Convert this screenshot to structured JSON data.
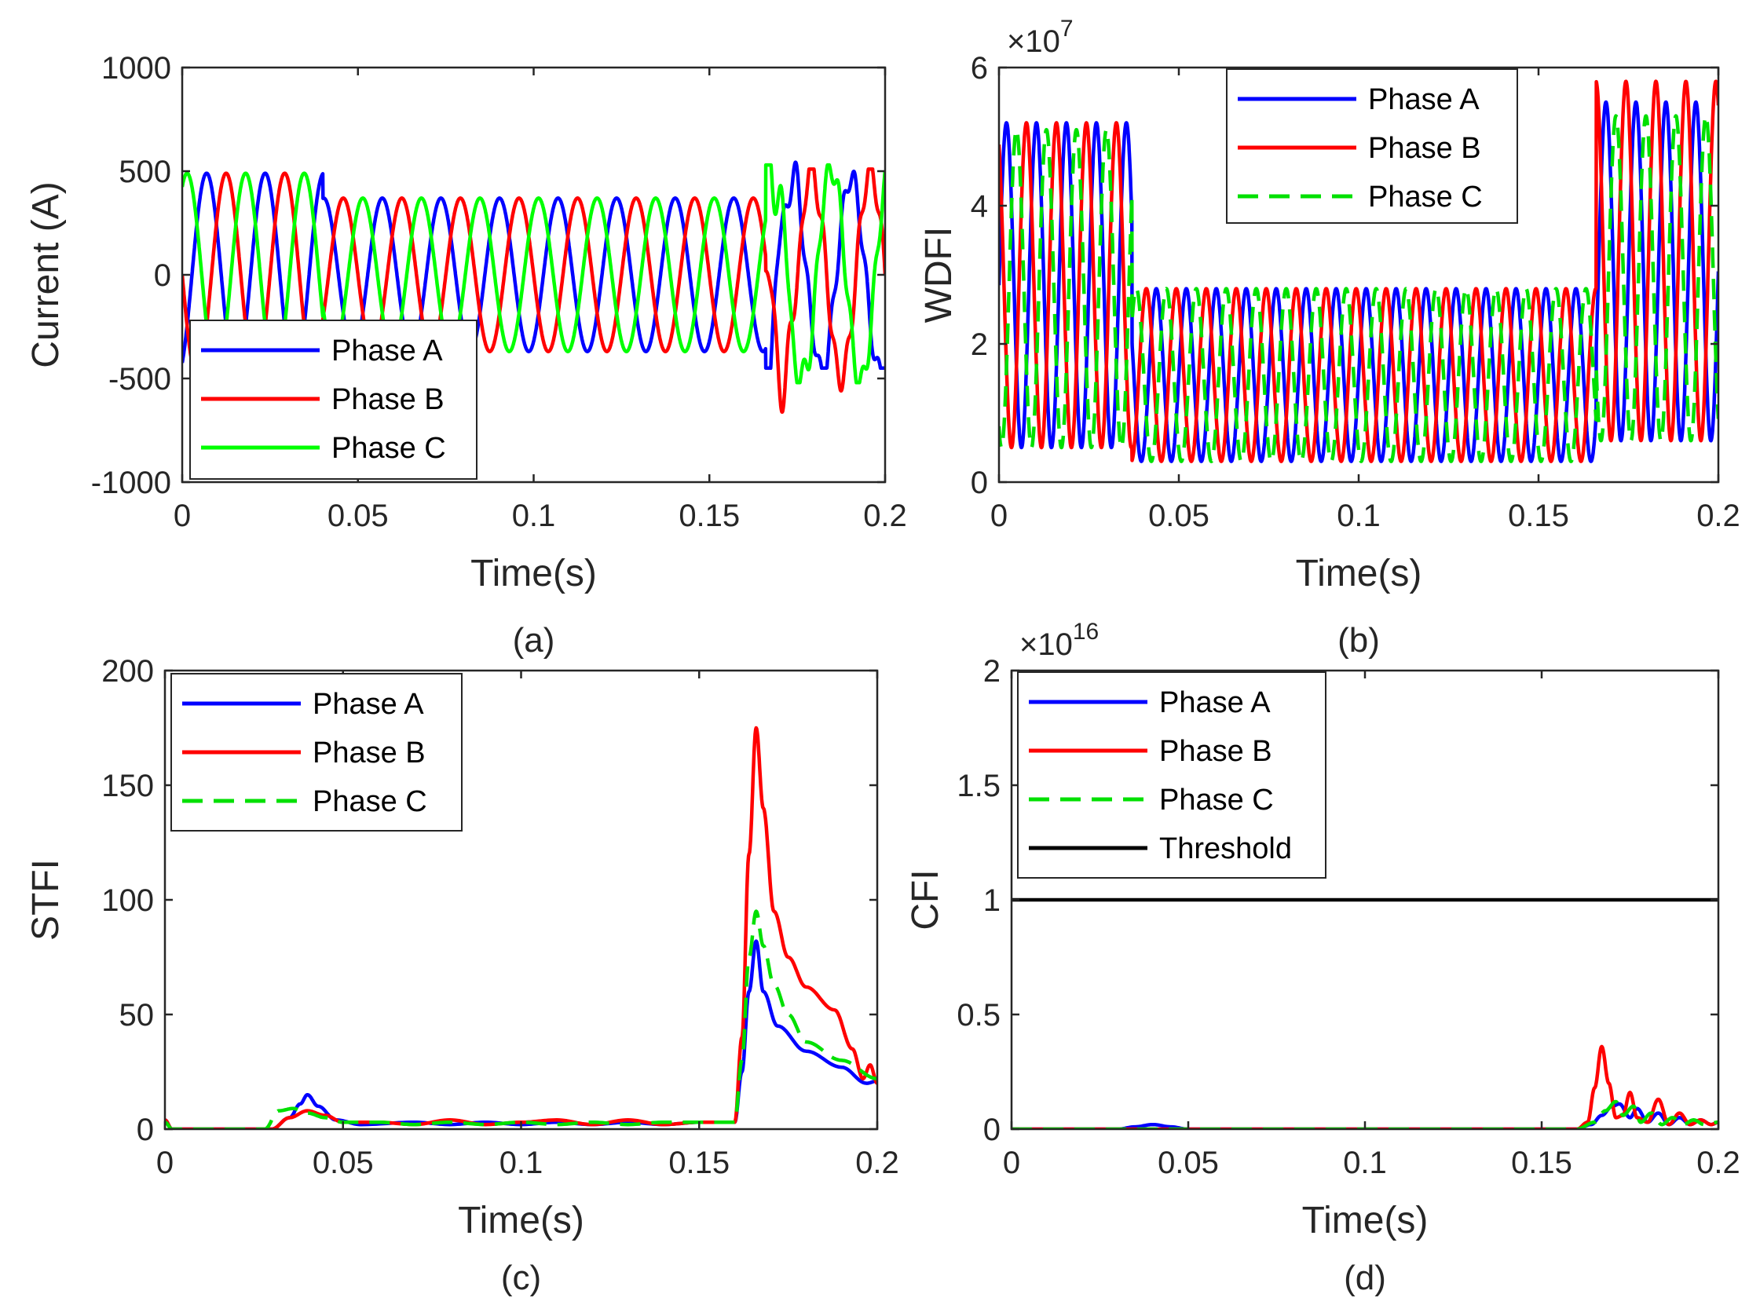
{
  "colors": {
    "phase_a": "#0000ff",
    "phase_b": "#ff0000",
    "phase_c_solid": "#00ff00",
    "phase_c_dashed": "#00e000",
    "threshold": "#000000",
    "axis": "#262626"
  },
  "chart_data": [
    {
      "id": "a",
      "type": "line",
      "caption": "(a)",
      "xlabel": "Time(s)",
      "ylabel": "Current (A)",
      "multiplier": "",
      "xlim": [
        0,
        0.2
      ],
      "ylim": [
        -1000,
        1000
      ],
      "xticks": [
        0,
        0.05,
        0.1,
        0.15,
        0.2
      ],
      "xtick_labels": [
        "0",
        "0.05",
        "0.1",
        "0.15",
        "0.2"
      ],
      "yticks": [
        -1000,
        -500,
        0,
        500,
        1000
      ],
      "ytick_labels": [
        "-1000",
        "-500",
        "0",
        "500",
        "1000"
      ],
      "legend": {
        "position": "bottom-left",
        "entries": [
          "Phase A",
          "Phase B",
          "Phase C"
        ]
      },
      "series": [
        {
          "name": "Phase A",
          "style": "solid",
          "color": "phase_a",
          "frequency_hz": 60,
          "phase_deg": -60,
          "segments": [
            {
              "t_start": 0,
              "t_end": 0.04,
              "amplitude": 490
            },
            {
              "t_start": 0.04,
              "t_end": 0.166,
              "amplitude": 370
            },
            {
              "t_start": 0.166,
              "t_end": 0.2,
              "amplitude": 470,
              "disturbed": true
            }
          ],
          "extrema": {
            "max": 590,
            "min": -450
          }
        },
        {
          "name": "Phase B",
          "style": "solid",
          "color": "phase_b",
          "frequency_hz": 60,
          "phase_deg": -180,
          "segments": [
            {
              "t_start": 0,
              "t_end": 0.04,
              "amplitude": 490
            },
            {
              "t_start": 0.04,
              "t_end": 0.166,
              "amplitude": 370
            },
            {
              "t_start": 0.166,
              "t_end": 0.2,
              "amplitude": 500,
              "disturbed": true
            }
          ],
          "extrema": {
            "max": 510,
            "min": -760
          }
        },
        {
          "name": "Phase C",
          "style": "solid",
          "color": "phase_c_solid",
          "frequency_hz": 60,
          "phase_deg": 60,
          "segments": [
            {
              "t_start": 0,
              "t_end": 0.04,
              "amplitude": 490
            },
            {
              "t_start": 0.04,
              "t_end": 0.166,
              "amplitude": 370
            },
            {
              "t_start": 0.166,
              "t_end": 0.2,
              "amplitude": 520,
              "disturbed": true
            }
          ],
          "extrema": {
            "max": 530,
            "min": -520
          }
        }
      ]
    },
    {
      "id": "b",
      "type": "line",
      "caption": "(b)",
      "xlabel": "Time(s)",
      "ylabel": "WDFI",
      "multiplier": "×10",
      "multiplier_exp": "7",
      "xlim": [
        0,
        0.2
      ],
      "ylim": [
        0,
        6
      ],
      "xticks": [
        0,
        0.05,
        0.1,
        0.15,
        0.2
      ],
      "xtick_labels": [
        "0",
        "0.05",
        "0.1",
        "0.15",
        "0.2"
      ],
      "yticks": [
        0,
        2,
        4,
        6
      ],
      "ytick_labels": [
        "0",
        "2",
        "4",
        "6"
      ],
      "legend": {
        "position": "top-right",
        "entries": [
          "Phase A",
          "Phase B",
          "Phase C"
        ]
      },
      "series": [
        {
          "name": "Phase A",
          "style": "solid",
          "color": "phase_a",
          "oscillation_hz": 120,
          "phase_deg": 0,
          "segments": [
            {
              "t_start": 0,
              "t_end": 0.037,
              "min": 0.5,
              "max": 5.2
            },
            {
              "t_start": 0.037,
              "t_end": 0.166,
              "min": 0.3,
              "max": 2.8
            },
            {
              "t_start": 0.166,
              "t_end": 0.2,
              "min": 0.6,
              "max": 5.5
            }
          ]
        },
        {
          "name": "Phase B",
          "style": "solid",
          "color": "phase_b",
          "oscillation_hz": 120,
          "phase_deg": 120,
          "segments": [
            {
              "t_start": 0,
              "t_end": 0.037,
              "min": 0.5,
              "max": 5.2
            },
            {
              "t_start": 0.037,
              "t_end": 0.166,
              "min": 0.3,
              "max": 2.8
            },
            {
              "t_start": 0.166,
              "t_end": 0.2,
              "min": 0.6,
              "max": 5.8
            }
          ]
        },
        {
          "name": "Phase C",
          "style": "dashed",
          "color": "phase_c_dashed",
          "oscillation_hz": 120,
          "phase_deg": 240,
          "segments": [
            {
              "t_start": 0,
              "t_end": 0.037,
              "min": 0.5,
              "max": 5.1
            },
            {
              "t_start": 0.037,
              "t_end": 0.166,
              "min": 0.3,
              "max": 2.8
            },
            {
              "t_start": 0.166,
              "t_end": 0.2,
              "min": 0.6,
              "max": 5.3
            }
          ]
        }
      ]
    },
    {
      "id": "c",
      "type": "line",
      "caption": "(c)",
      "xlabel": "Time(s)",
      "ylabel": "STFI",
      "multiplier": "",
      "xlim": [
        0,
        0.2
      ],
      "ylim": [
        0,
        200
      ],
      "xticks": [
        0,
        0.05,
        0.1,
        0.15,
        0.2
      ],
      "xtick_labels": [
        "0",
        "0.05",
        "0.1",
        "0.15",
        "0.2"
      ],
      "yticks": [
        0,
        50,
        100,
        150,
        200
      ],
      "ytick_labels": [
        "0",
        "50",
        "100",
        "150",
        "200"
      ],
      "legend": {
        "position": "top-left",
        "entries": [
          "Phase A",
          "Phase B",
          "Phase C"
        ]
      },
      "series": [
        {
          "name": "Phase A",
          "style": "solid",
          "color": "phase_a",
          "x": [
            0,
            0.002,
            0.01,
            0.03,
            0.035,
            0.038,
            0.04,
            0.043,
            0.048,
            0.055,
            0.07,
            0.08,
            0.09,
            0.1,
            0.11,
            0.12,
            0.13,
            0.14,
            0.15,
            0.16,
            0.162,
            0.164,
            0.166,
            0.168,
            0.172,
            0.18,
            0.19,
            0.197,
            0.2
          ],
          "y": [
            4,
            0,
            0,
            0,
            5,
            11,
            15,
            10,
            4,
            2,
            3,
            2,
            3,
            2,
            3,
            2,
            3,
            2,
            3,
            3,
            25,
            60,
            82,
            60,
            45,
            34,
            27,
            20,
            21
          ]
        },
        {
          "name": "Phase B",
          "style": "solid",
          "color": "phase_b",
          "x": [
            0,
            0.002,
            0.01,
            0.03,
            0.035,
            0.04,
            0.045,
            0.05,
            0.06,
            0.07,
            0.08,
            0.09,
            0.1,
            0.11,
            0.12,
            0.13,
            0.14,
            0.15,
            0.16,
            0.162,
            0.164,
            0.166,
            0.168,
            0.171,
            0.175,
            0.18,
            0.188,
            0.193,
            0.196,
            0.198,
            0.2
          ],
          "y": [
            4,
            0,
            0,
            0,
            5,
            8,
            6,
            3,
            3,
            2,
            4,
            2,
            3,
            4,
            2,
            4,
            2,
            3,
            3,
            40,
            120,
            175,
            140,
            95,
            75,
            62,
            52,
            35,
            22,
            28,
            20
          ]
        },
        {
          "name": "Phase C",
          "style": "dashed",
          "color": "phase_c_dashed",
          "x": [
            0,
            0.002,
            0.01,
            0.028,
            0.032,
            0.036,
            0.04,
            0.045,
            0.05,
            0.06,
            0.07,
            0.08,
            0.09,
            0.1,
            0.11,
            0.12,
            0.13,
            0.14,
            0.15,
            0.16,
            0.162,
            0.164,
            0.166,
            0.168,
            0.171,
            0.175,
            0.18,
            0.19,
            0.2
          ],
          "y": [
            3,
            0,
            0,
            0,
            8,
            9,
            7,
            5,
            3,
            3,
            2,
            3,
            2,
            3,
            2,
            3,
            2,
            3,
            3,
            3,
            30,
            75,
            95,
            80,
            63,
            50,
            38,
            30,
            22
          ]
        }
      ]
    },
    {
      "id": "d",
      "type": "line",
      "caption": "(d)",
      "xlabel": "Time(s)",
      "ylabel": "CFI",
      "multiplier": "×10",
      "multiplier_exp": "16",
      "xlim": [
        0,
        0.2
      ],
      "ylim": [
        0,
        2
      ],
      "xticks": [
        0,
        0.05,
        0.1,
        0.15,
        0.2
      ],
      "xtick_labels": [
        "0",
        "0.05",
        "0.1",
        "0.15",
        "0.2"
      ],
      "yticks": [
        0,
        0.5,
        1,
        1.5,
        2
      ],
      "ytick_labels": [
        "0",
        "0.5",
        "1",
        "1.5",
        "2"
      ],
      "legend": {
        "position": "top-left",
        "entries": [
          "Phase A",
          "Phase B",
          "Phase C",
          "Threshold"
        ]
      },
      "series": [
        {
          "name": "Phase A",
          "style": "solid",
          "color": "phase_a",
          "x": [
            0,
            0.03,
            0.035,
            0.04,
            0.045,
            0.05,
            0.16,
            0.164,
            0.167,
            0.17,
            0.172,
            0.175,
            0.177,
            0.18,
            0.183,
            0.186,
            0.189,
            0.192,
            0.195,
            0.198,
            0.2
          ],
          "y": [
            0,
            0,
            0.01,
            0.02,
            0.01,
            0,
            0,
            0.02,
            0.06,
            0.1,
            0.11,
            0.05,
            0.09,
            0.03,
            0.07,
            0.02,
            0.05,
            0.02,
            0.04,
            0.02,
            0.03
          ]
        },
        {
          "name": "Phase B",
          "style": "solid",
          "color": "phase_b",
          "x": [
            0,
            0.16,
            0.163,
            0.165,
            0.167,
            0.169,
            0.171,
            0.173,
            0.175,
            0.177,
            0.18,
            0.183,
            0.186,
            0.189,
            0.192,
            0.195,
            0.198,
            0.2
          ],
          "y": [
            0,
            0,
            0.03,
            0.18,
            0.36,
            0.2,
            0.05,
            0.06,
            0.16,
            0.05,
            0.03,
            0.13,
            0.02,
            0.07,
            0.02,
            0.04,
            0.02,
            0.03
          ]
        },
        {
          "name": "Phase C",
          "style": "dashed",
          "color": "phase_c_dashed",
          "x": [
            0,
            0.16,
            0.165,
            0.168,
            0.171,
            0.173,
            0.176,
            0.178,
            0.181,
            0.184,
            0.187,
            0.19,
            0.193,
            0.196,
            0.2
          ],
          "y": [
            0,
            0,
            0.03,
            0.08,
            0.12,
            0.06,
            0.1,
            0.03,
            0.07,
            0.02,
            0.05,
            0.02,
            0.04,
            0.02,
            0.03
          ]
        },
        {
          "name": "Threshold",
          "style": "solid",
          "color": "threshold",
          "x": [
            0,
            0.2
          ],
          "y": [
            1,
            1
          ]
        }
      ]
    }
  ]
}
